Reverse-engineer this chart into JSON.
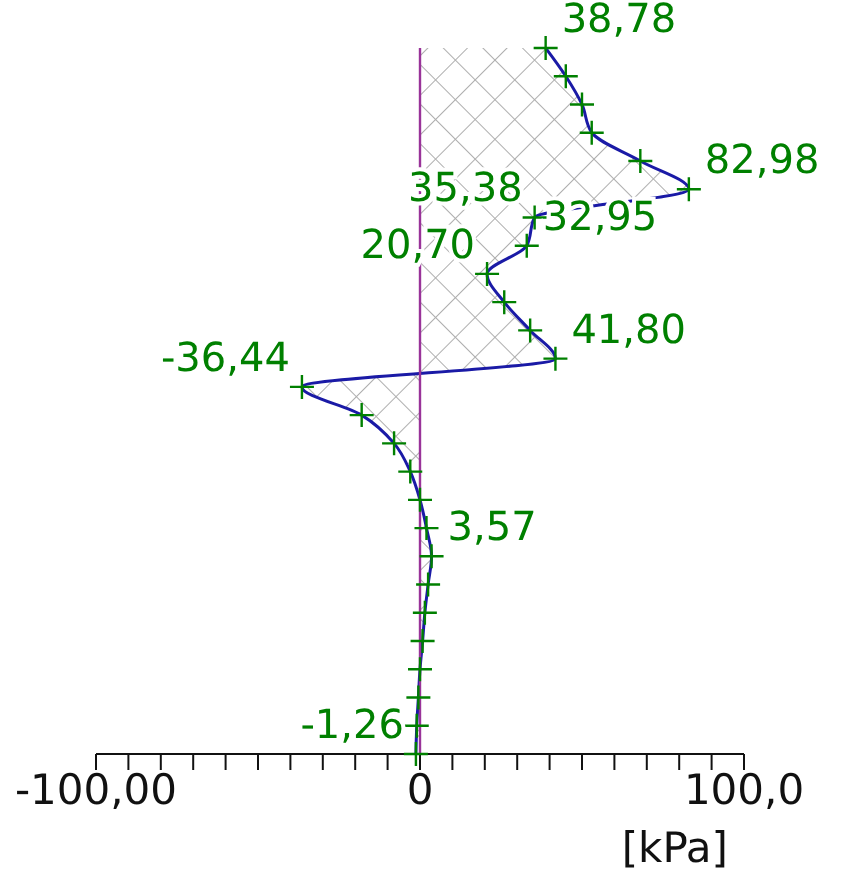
{
  "chart_data": {
    "type": "area",
    "orientation": "horizontal",
    "color": "#1a1aa6",
    "categories": [
      null,
      null,
      null,
      null,
      null,
      null,
      null,
      null,
      null,
      null,
      null,
      null,
      null,
      null,
      null,
      null,
      null,
      null,
      null,
      null,
      null,
      null,
      null,
      null,
      null,
      null
    ],
    "values": [
      38.78,
      45,
      50,
      53,
      68,
      82.98,
      35.38,
      32.95,
      20.7,
      26,
      34,
      41.8,
      -36.44,
      -18,
      -8,
      -3,
      0,
      2,
      3.57,
      2.5,
      1.5,
      0.8,
      0,
      -0.5,
      -1,
      -1.26
    ],
    "value_labels": [
      "38,78",
      null,
      null,
      null,
      null,
      "82,98",
      "35,38",
      "32,95",
      "20,70",
      null,
      null,
      "41,80",
      "-36,44",
      null,
      null,
      null,
      null,
      null,
      "3,57",
      null,
      null,
      null,
      null,
      null,
      null,
      "-1,26"
    ],
    "marker": "cross",
    "xlim": [
      -100,
      100
    ],
    "xticks": [
      {
        "value": -100,
        "label": "-100,00"
      },
      {
        "value": -90,
        "label": null
      },
      {
        "value": -80,
        "label": null
      },
      {
        "value": -70,
        "label": null
      },
      {
        "value": -60,
        "label": null
      },
      {
        "value": -50,
        "label": null
      },
      {
        "value": -40,
        "label": null
      },
      {
        "value": -30,
        "label": null
      },
      {
        "value": -20,
        "label": null
      },
      {
        "value": -10,
        "label": null
      },
      0,
      {
        "value": 10,
        "label": null
      },
      {
        "value": 20,
        "label": null
      },
      {
        "value": 30,
        "label": null
      },
      {
        "value": 40,
        "label": null
      },
      {
        "value": 50,
        "label": null
      },
      {
        "value": 60,
        "label": null
      },
      {
        "value": 70,
        "label": null
      },
      {
        "value": 80,
        "label": null
      },
      {
        "value": 90,
        "label": null
      },
      {
        "value": 100,
        "label": "100,0"
      }
    ],
    "xlabel": "[kPa]",
    "ref_lines": [
      {
        "axis": "x",
        "value": 0,
        "label": null,
        "color": "#993399"
      }
    ]
  }
}
